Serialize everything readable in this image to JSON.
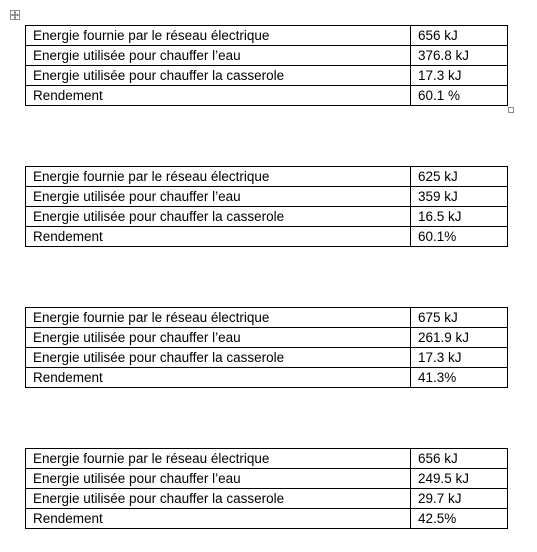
{
  "tables": [
    {
      "rows": [
        {
          "label": "Energie fournie par le réseau électrique",
          "value": "656 kJ"
        },
        {
          "label": "Energie utilisée pour chauffer l’eau",
          "value": "376.8 kJ"
        },
        {
          "label": "Energie utilisée pour chauffer la casserole",
          "value": "17.3 kJ"
        },
        {
          "label": "Rendement",
          "value": "60.1 %"
        }
      ]
    },
    {
      "rows": [
        {
          "label": "Energie fournie par le réseau électrique",
          "value": "625 kJ"
        },
        {
          "label": "Energie utilisée pour chauffer l’eau",
          "value": "359 kJ"
        },
        {
          "label": "Energie utilisée pour chauffer la casserole",
          "value": "16.5 kJ"
        },
        {
          "label": "Rendement",
          "value": "60.1%"
        }
      ]
    },
    {
      "rows": [
        {
          "label": "Energie fournie par le réseau électrique",
          "value": "675 kJ"
        },
        {
          "label": "Energie utilisée pour chauffer l’eau",
          "value": "261.9 kJ"
        },
        {
          "label": "Energie utilisée pour chauffer la casserole",
          "value": "17.3 kJ"
        },
        {
          "label": "Rendement",
          "value": "41.3%"
        }
      ]
    },
    {
      "rows": [
        {
          "label": "Energie fournie par le réseau électrique",
          "value": "656 kJ"
        },
        {
          "label": "Energie utilisée pour chauffer l’eau",
          "value": "249.5 kJ"
        },
        {
          "label": "Energie utilisée pour chauffer la casserole",
          "value": "29.7 kJ"
        },
        {
          "label": "Rendement",
          "value": "42.5%"
        }
      ]
    }
  ],
  "icons": {
    "move_handle": "table-move-handle-icon",
    "resize_handle": "table-resize-handle-icon"
  }
}
